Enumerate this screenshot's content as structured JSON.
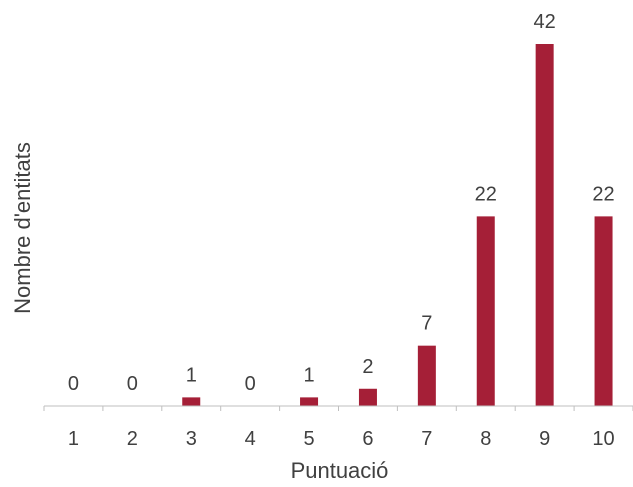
{
  "chart_data": {
    "type": "bar",
    "categories": [
      "1",
      "2",
      "3",
      "4",
      "5",
      "6",
      "7",
      "8",
      "9",
      "10"
    ],
    "values": [
      0,
      0,
      1,
      0,
      1,
      2,
      7,
      22,
      42,
      22
    ],
    "data_labels": [
      "0",
      "0",
      "1",
      "0",
      "1",
      "2",
      "7",
      "22",
      "42",
      "22"
    ],
    "xlabel": "Puntuació",
    "ylabel": "Nombre d'entitats",
    "ylim": [
      0,
      42
    ],
    "grid": false,
    "legend": "none",
    "bar_color": "#A51F37",
    "axis_color": "#BFBFBF",
    "text_color": "#404040"
  }
}
